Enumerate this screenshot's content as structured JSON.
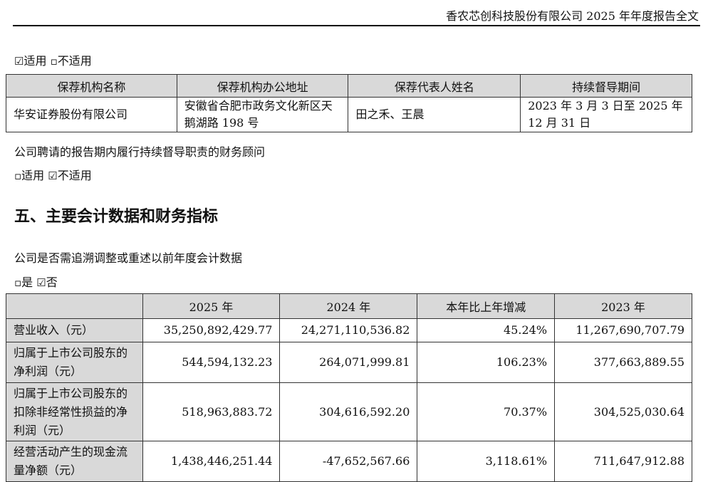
{
  "header": {
    "title": "香农芯创科技股份有限公司 2025 年年度报告全文"
  },
  "sponsor_block": {
    "option_line": {
      "yes_box": "☑",
      "yes_label": "适用",
      "no_box": "▫",
      "no_label": "不适用"
    },
    "columns": [
      "保荐机构名称",
      "保荐机构办公地址",
      "保荐代表人姓名",
      "持续督导期间"
    ],
    "row": {
      "name": "华安证券股份有限公司",
      "address": "安徽省合肥市政务文化新区天鹅湖路 198 号",
      "reps": "田之禾、王晨",
      "period": "2023 年 3 月 3 日至 2025 年 12 月 31 日"
    }
  },
  "advisor_block": {
    "text": "公司聘请的报告期内履行持续督导职责的财务顾问",
    "option_line": {
      "yes_box": "▫",
      "yes_label": "适用",
      "no_box": "☑",
      "no_label": "不适用"
    }
  },
  "section": {
    "heading": "五、主要会计数据和财务指标",
    "question": "公司是否需追溯调整或重述以前年度会计数据",
    "option_line": {
      "yes_box": "▫",
      "yes_label": "是",
      "no_box": "☑",
      "no_label": "否"
    }
  },
  "financial_table": {
    "columns": [
      "",
      "2025 年",
      "2024 年",
      "本年比上年增减",
      "2023 年"
    ],
    "rows": [
      {
        "label": "营业收入（元）",
        "v2025": "35,250,892,429.77",
        "v2024": "24,271,110,536.82",
        "change": "45.24%",
        "v2023": "11,267,690,707.79"
      },
      {
        "label": "归属于上市公司股东的净利润（元）",
        "v2025": "544,594,132.23",
        "v2024": "264,071,999.81",
        "change": "106.23%",
        "v2023": "377,663,889.55"
      },
      {
        "label": "归属于上市公司股东的扣除非经常性损益的净利润（元）",
        "v2025": "518,963,883.72",
        "v2024": "304,616,592.20",
        "change": "70.37%",
        "v2023": "304,525,030.64"
      },
      {
        "label": "经营活动产生的现金流量净额（元）",
        "v2025": "1,438,446,251.44",
        "v2024": "-47,652,567.66",
        "change": "3,118.61%",
        "v2023": "711,647,912.88"
      }
    ]
  }
}
